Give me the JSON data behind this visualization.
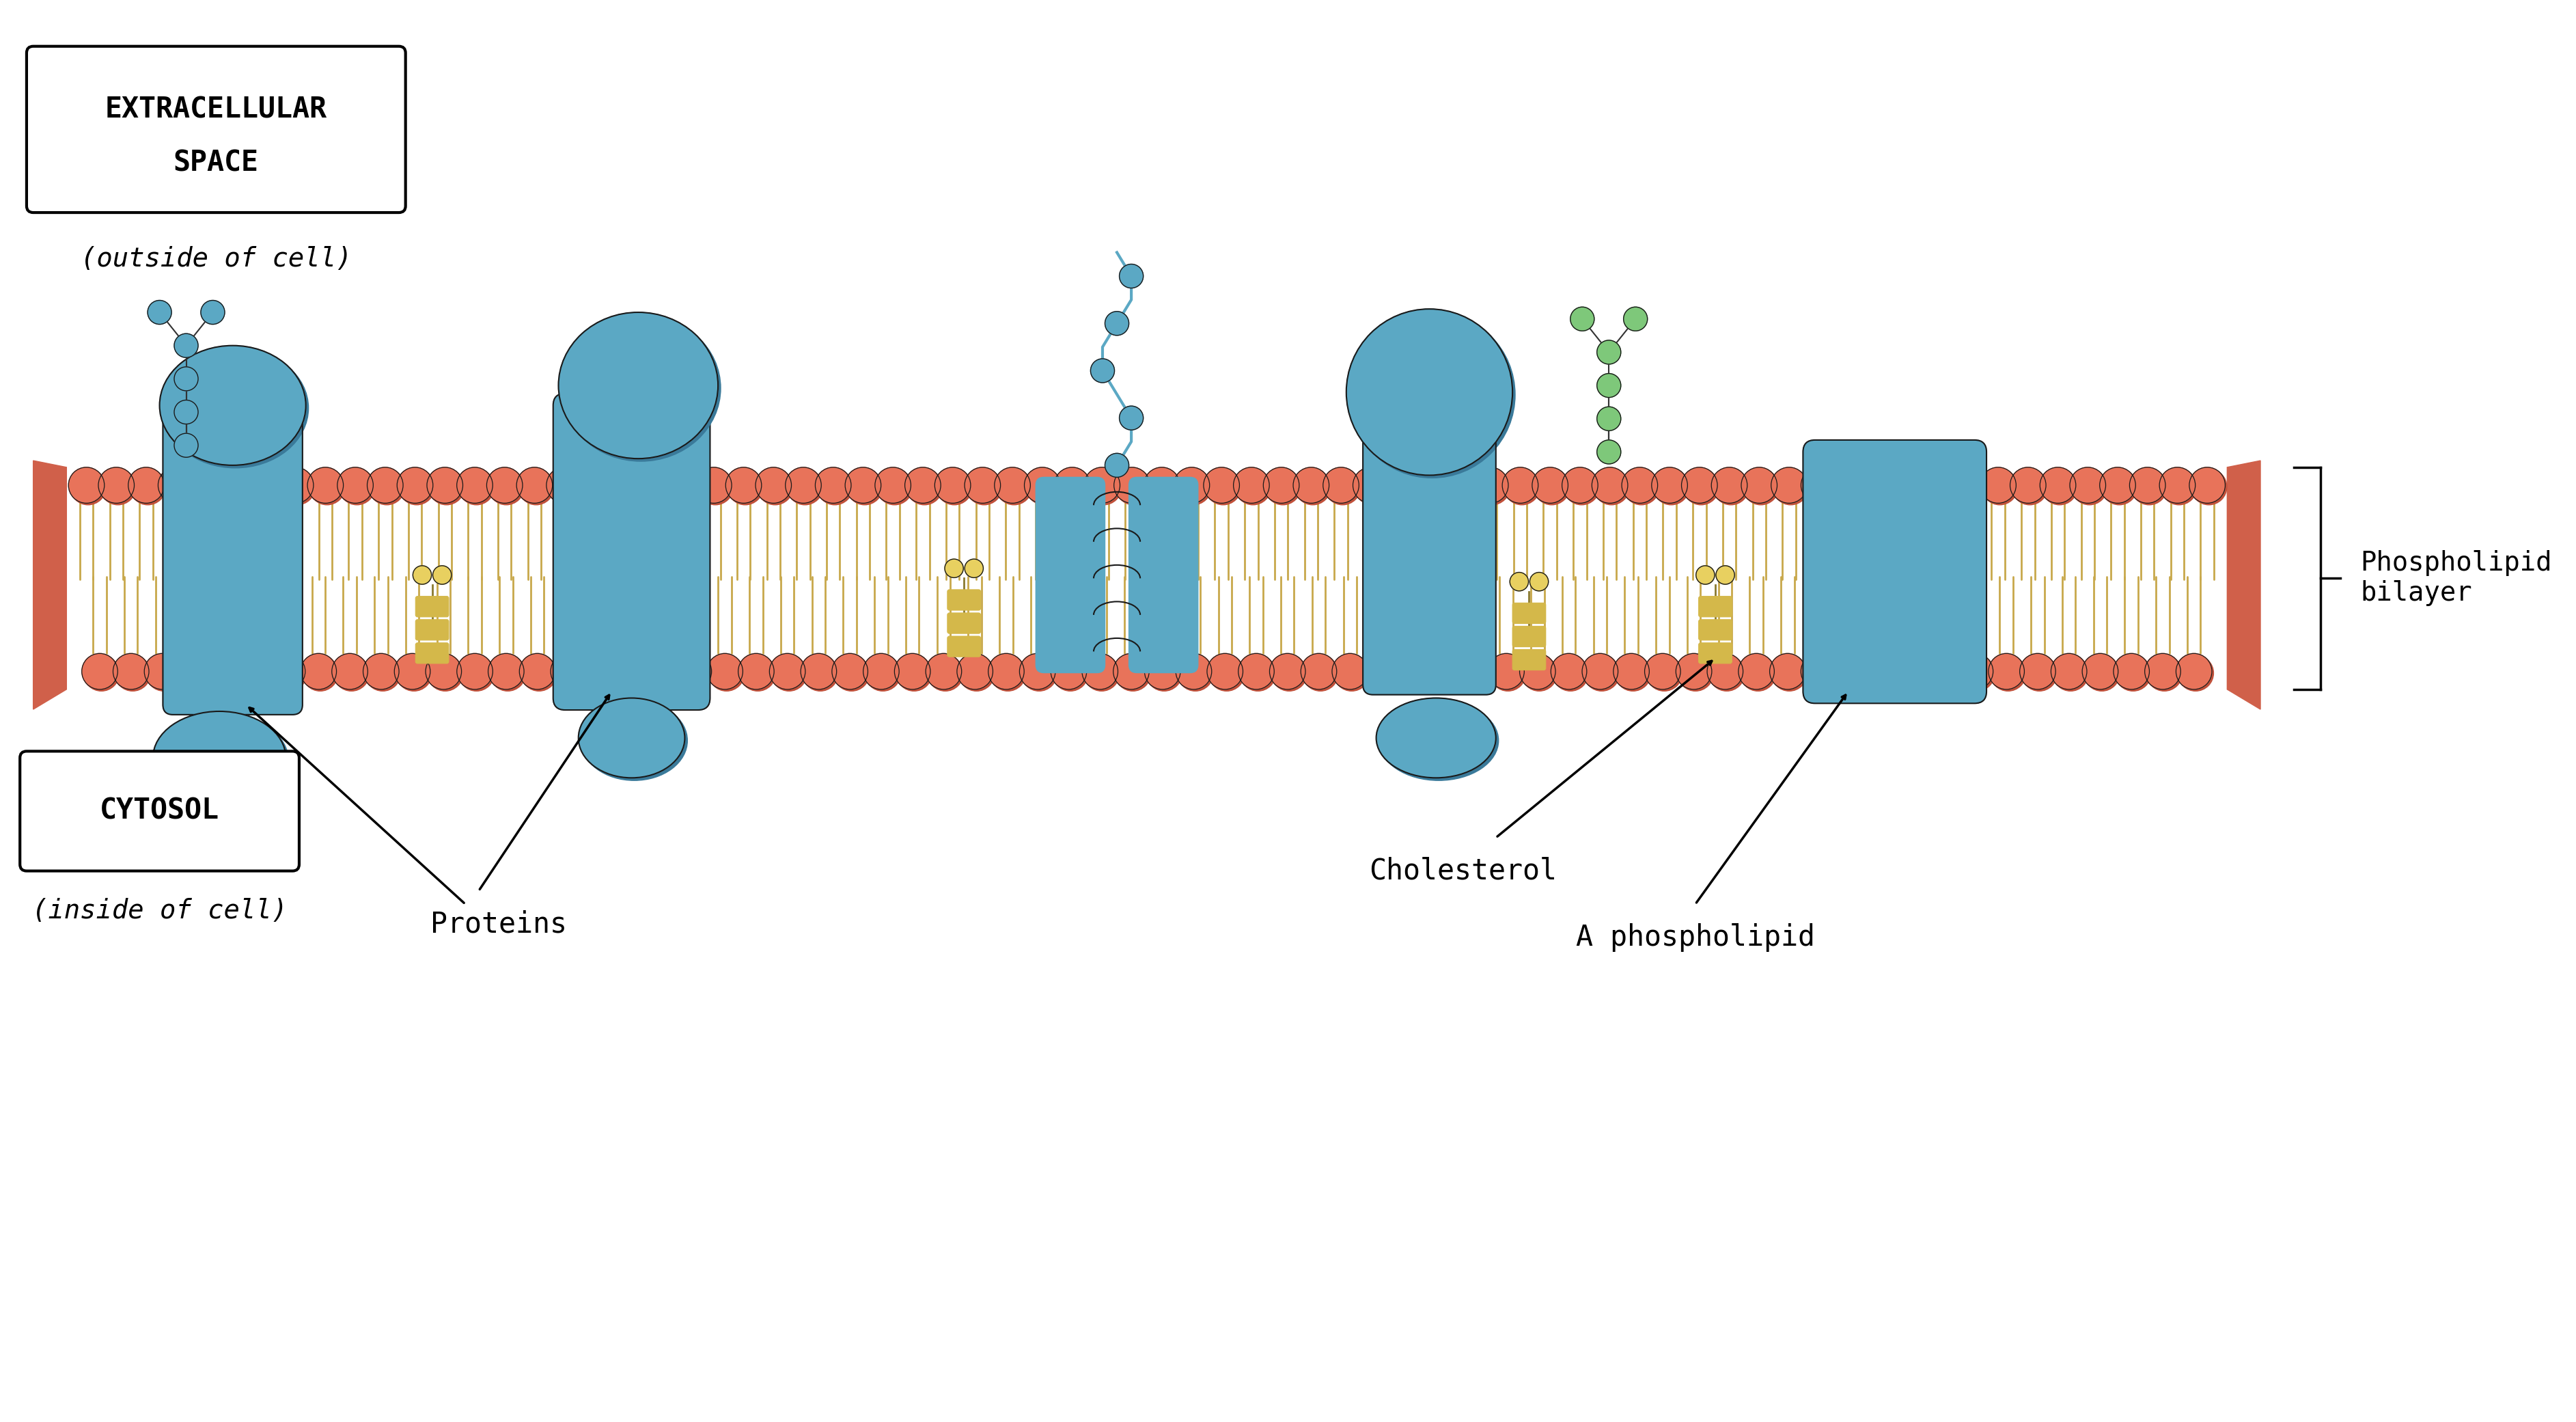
{
  "bg_color": "#ffffff",
  "membrane_color": "#E8735A",
  "membrane_shadow": "#C0503A",
  "protein_color": "#5BA8C4",
  "protein_shadow": "#3A7A9A",
  "tail_color": "#C8A84B",
  "cholesterol_bead_color": "#E8D060",
  "glycan_blue_color": "#5BA8C4",
  "glycan_green_color": "#7EC87A",
  "label_font": "Arial",
  "extracellular_label": "EXTRACELLULAR\n    SPACE",
  "outside_label": "(outside of cell)",
  "cytosol_label": "CYTOSOL",
  "inside_label": "(inside of cell)",
  "proteins_label": "Proteins",
  "cholesterol_label": "Cholesterol",
  "phospholipid_label": "A phospholipid",
  "bilayer_label": "Phospholipid\nbilayer",
  "fig_width": 37.71,
  "fig_height": 20.81
}
